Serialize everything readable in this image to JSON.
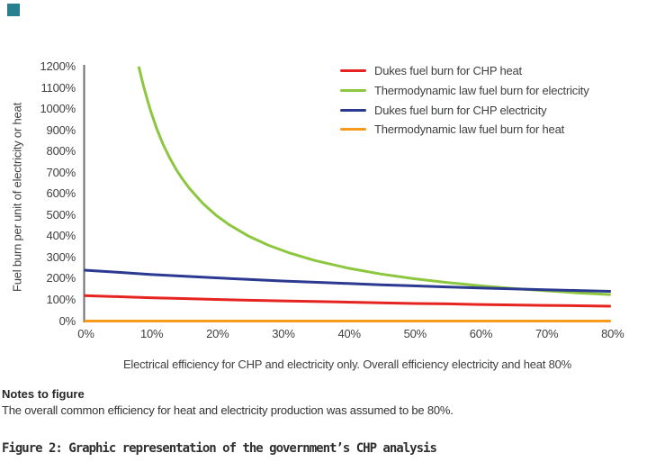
{
  "page": {
    "notes_title": "Notes to figure",
    "notes_body": "The overall common efficiency for heat and electricity production was assumed to be 80%.",
    "caption": "Figure 2: Graphic representation of the government’s CHP analysis"
  },
  "accent": {
    "corner_color": "#26808f"
  },
  "chart_data": {
    "type": "line",
    "title": "",
    "xlabel": "Electrical efficiency for CHP and electricity only. Overall efficiency electricity and heat 80%",
    "ylabel": "Fuel burn per unit of electricity or heat",
    "xlim": [
      0,
      80
    ],
    "ylim": [
      0,
      1200
    ],
    "grid": false,
    "legend_position": "top-right",
    "axis_color": "#6d6e71",
    "x_tick_labels": [
      "0%",
      "10%",
      "20%",
      "30%",
      "40%",
      "50%",
      "60%",
      "70%",
      "80%"
    ],
    "y_tick_labels": [
      "0%",
      "100%",
      "200%",
      "300%",
      "400%",
      "500%",
      "600%",
      "700%",
      "800%",
      "900%",
      "1000%",
      "1100%",
      "1200%"
    ],
    "series": [
      {
        "name": "Dukes fuel burn for CHP heat",
        "color": "#e52421",
        "x": [
          0,
          5,
          10,
          15,
          20,
          25,
          30,
          35,
          40,
          45,
          50,
          55,
          60,
          65,
          70,
          75,
          80
        ],
        "y": [
          120,
          115,
          110,
          106,
          102,
          98,
          95,
          92,
          89,
          86,
          83,
          81,
          78,
          76,
          74,
          72,
          70
        ]
      },
      {
        "name": "Thermodynamic law fuel burn for electricity",
        "color": "#8dc63f",
        "x": [
          8.3,
          9,
          10,
          11,
          12,
          13,
          14,
          15,
          16,
          18,
          20,
          22,
          25,
          28,
          31,
          35,
          40,
          45,
          50,
          55,
          60,
          65,
          70,
          75,
          80
        ],
        "y": [
          1200,
          1111,
          1000,
          909,
          833,
          769,
          714,
          667,
          625,
          556,
          500,
          455,
          400,
          357,
          323,
          286,
          250,
          222,
          200,
          182,
          167,
          154,
          143,
          133,
          125
        ]
      },
      {
        "name": "Dukes fuel burn for CHP electricity",
        "color": "#2b3990",
        "x": [
          0,
          5,
          10,
          15,
          20,
          25,
          30,
          35,
          40,
          45,
          50,
          55,
          60,
          65,
          70,
          75,
          80
        ],
        "y": [
          240,
          230,
          220,
          212,
          204,
          196,
          189,
          183,
          177,
          171,
          166,
          161,
          156,
          152,
          148,
          144,
          140
        ]
      },
      {
        "name": "Thermodynamic law fuel burn for heat",
        "color": "#f89a1c",
        "x": [
          0,
          80
        ],
        "y": [
          0,
          0
        ]
      }
    ],
    "draw_order": [
      1,
      2,
      0,
      3
    ]
  }
}
